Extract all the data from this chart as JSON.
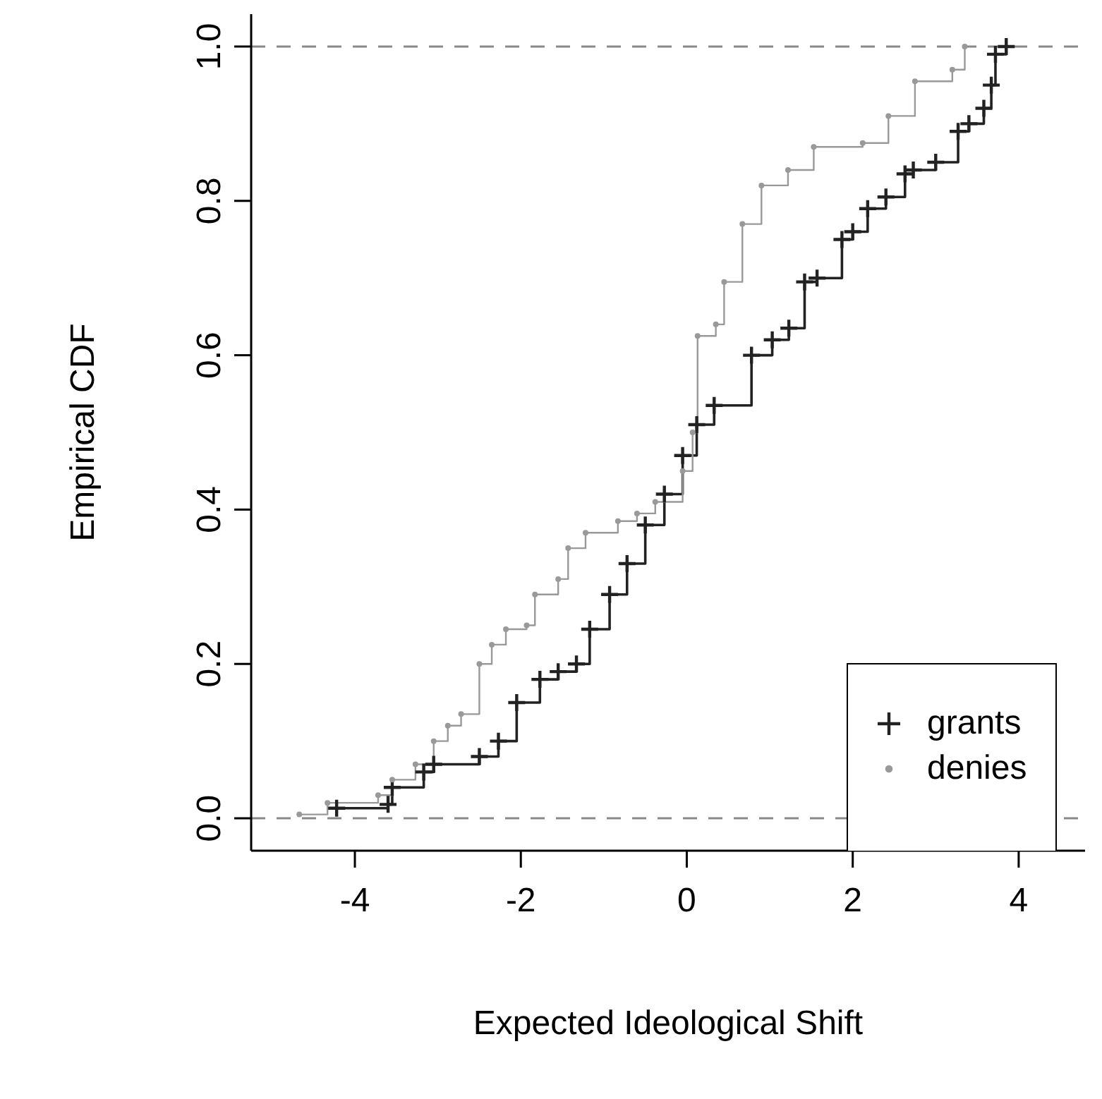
{
  "chart_data": {
    "type": "step",
    "xlabel": "Expected Ideological Shift",
    "ylabel": "Empirical CDF",
    "xlim": [
      -5.25,
      4.8
    ],
    "xticks": [
      -4,
      -2,
      0,
      2,
      4
    ],
    "ylim": [
      -0.042,
      1.042
    ],
    "yticks": [
      {
        "value": 0,
        "label": "0.0"
      },
      {
        "value": 0.2,
        "label": "0.2"
      },
      {
        "value": 0.4,
        "label": "0.4"
      },
      {
        "value": 0.6,
        "label": "0.6"
      },
      {
        "value": 0.8,
        "label": "0.8"
      },
      {
        "value": 1,
        "label": "1.0"
      }
    ],
    "legend": "bottom right",
    "grid": false,
    "line_style": "solid",
    "ref_lines": [
      {
        "axis": "y",
        "value": 0,
        "color": "#888888",
        "line_style": "dashed"
      },
      {
        "axis": "y",
        "value": 1,
        "color": "#888888",
        "line_style": "dashed"
      }
    ],
    "series": [
      {
        "name": "grants",
        "color": "#222222",
        "marker": "cross",
        "x": [
          -4.22,
          -3.6,
          -3.55,
          -3.17,
          -3.05,
          -2.5,
          -2.27,
          -2.05,
          -1.77,
          -1.55,
          -1.33,
          -1.17,
          -0.93,
          -0.72,
          -0.5,
          -0.27,
          -0.05,
          0.12,
          0.33,
          0.78,
          1.03,
          1.23,
          1.42,
          1.57,
          1.87,
          2.0,
          2.18,
          2.4,
          2.63,
          2.73,
          3.0,
          3.27,
          3.4,
          3.58,
          3.67,
          3.72,
          3.85
        ],
        "values": [
          0.013,
          0.018,
          0.04,
          0.06,
          0.07,
          0.08,
          0.1,
          0.15,
          0.18,
          0.19,
          0.2,
          0.245,
          0.29,
          0.33,
          0.38,
          0.42,
          0.47,
          0.51,
          0.535,
          0.6,
          0.62,
          0.635,
          0.695,
          0.7,
          0.75,
          0.76,
          0.79,
          0.805,
          0.835,
          0.84,
          0.85,
          0.89,
          0.9,
          0.92,
          0.95,
          0.99,
          1.0
        ]
      },
      {
        "name": "denies",
        "color": "#999999",
        "marker": "circle",
        "x": [
          -4.67,
          -4.33,
          -3.72,
          -3.55,
          -3.27,
          -3.05,
          -2.88,
          -2.72,
          -2.5,
          -2.35,
          -2.18,
          -1.93,
          -1.83,
          -1.55,
          -1.43,
          -1.22,
          -0.83,
          -0.6,
          -0.38,
          -0.05,
          0.07,
          0.13,
          0.35,
          0.45,
          0.67,
          0.9,
          1.22,
          1.53,
          2.12,
          2.43,
          2.75,
          3.2,
          3.35
        ],
        "values": [
          0.005,
          0.02,
          0.03,
          0.05,
          0.07,
          0.1,
          0.12,
          0.135,
          0.2,
          0.225,
          0.245,
          0.25,
          0.29,
          0.31,
          0.35,
          0.37,
          0.385,
          0.395,
          0.41,
          0.45,
          0.5,
          0.625,
          0.64,
          0.695,
          0.77,
          0.82,
          0.84,
          0.87,
          0.875,
          0.91,
          0.955,
          0.97,
          1.0
        ]
      }
    ]
  }
}
